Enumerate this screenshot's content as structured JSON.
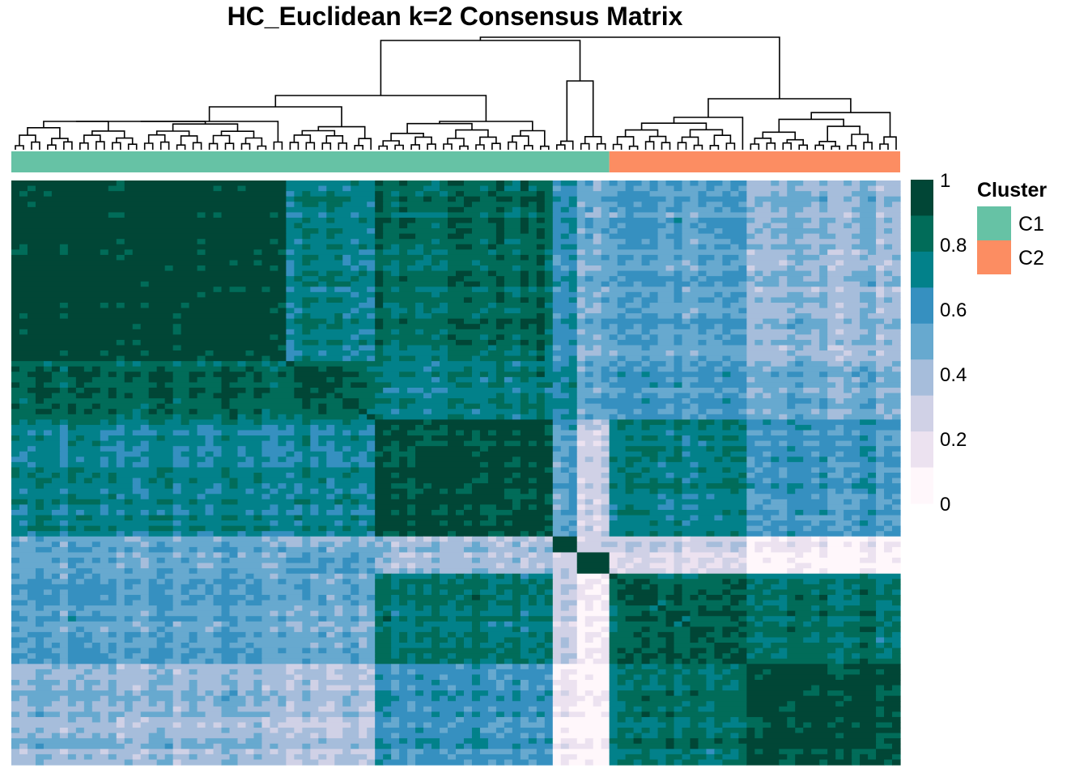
{
  "chart_data": {
    "type": "heatmap",
    "title": "HC_Euclidean k=2 Consensus Matrix",
    "n_samples": 110,
    "value_range": [
      0,
      1
    ],
    "colorbar": {
      "ticks": [
        "0",
        "0.2",
        "0.4",
        "0.6",
        "0.8",
        "1"
      ],
      "tick_values": [
        0,
        0.2,
        0.4,
        0.6,
        0.8,
        1
      ],
      "palette": [
        "#fff7fb",
        "#ece2f0",
        "#d0d1e6",
        "#a6bddb",
        "#67a9cf",
        "#3690c0",
        "#02818a",
        "#016c59",
        "#014636"
      ],
      "legend_placement": "right"
    },
    "clusters": [
      {
        "name": "C1",
        "size": 74,
        "color": "#66c2a5"
      },
      {
        "name": "C2",
        "size": 36,
        "color": "#fc8d62"
      }
    ],
    "legend": {
      "title": "Cluster",
      "entries": [
        "C1",
        "C2"
      ]
    },
    "sample_blocks": [
      {
        "cluster": "C1",
        "size": 34
      },
      {
        "cluster": "C1",
        "size": 11
      },
      {
        "cluster": "C1",
        "size": 22
      },
      {
        "cluster": "C1",
        "size": 3
      },
      {
        "cluster": "C1",
        "size": 4
      },
      {
        "cluster": "C2",
        "size": 17
      },
      {
        "cluster": "C2",
        "size": 19
      }
    ],
    "block_consensus": [
      [
        0.97,
        0.72,
        0.84,
        0.62,
        0.48,
        0.55,
        0.42
      ],
      [
        0.85,
        0.86,
        0.74,
        0.68,
        0.52,
        0.58,
        0.48
      ],
      [
        0.72,
        0.7,
        0.94,
        0.55,
        0.3,
        0.76,
        0.6
      ],
      [
        0.5,
        0.44,
        0.4,
        0.96,
        0.3,
        0.3,
        0.12
      ],
      [
        0.5,
        0.55,
        0.4,
        0.3,
        0.98,
        0.22,
        0.05
      ],
      [
        0.55,
        0.5,
        0.8,
        0.3,
        0.1,
        0.88,
        0.8
      ],
      [
        0.42,
        0.35,
        0.62,
        0.12,
        0.05,
        0.8,
        0.93
      ]
    ]
  }
}
